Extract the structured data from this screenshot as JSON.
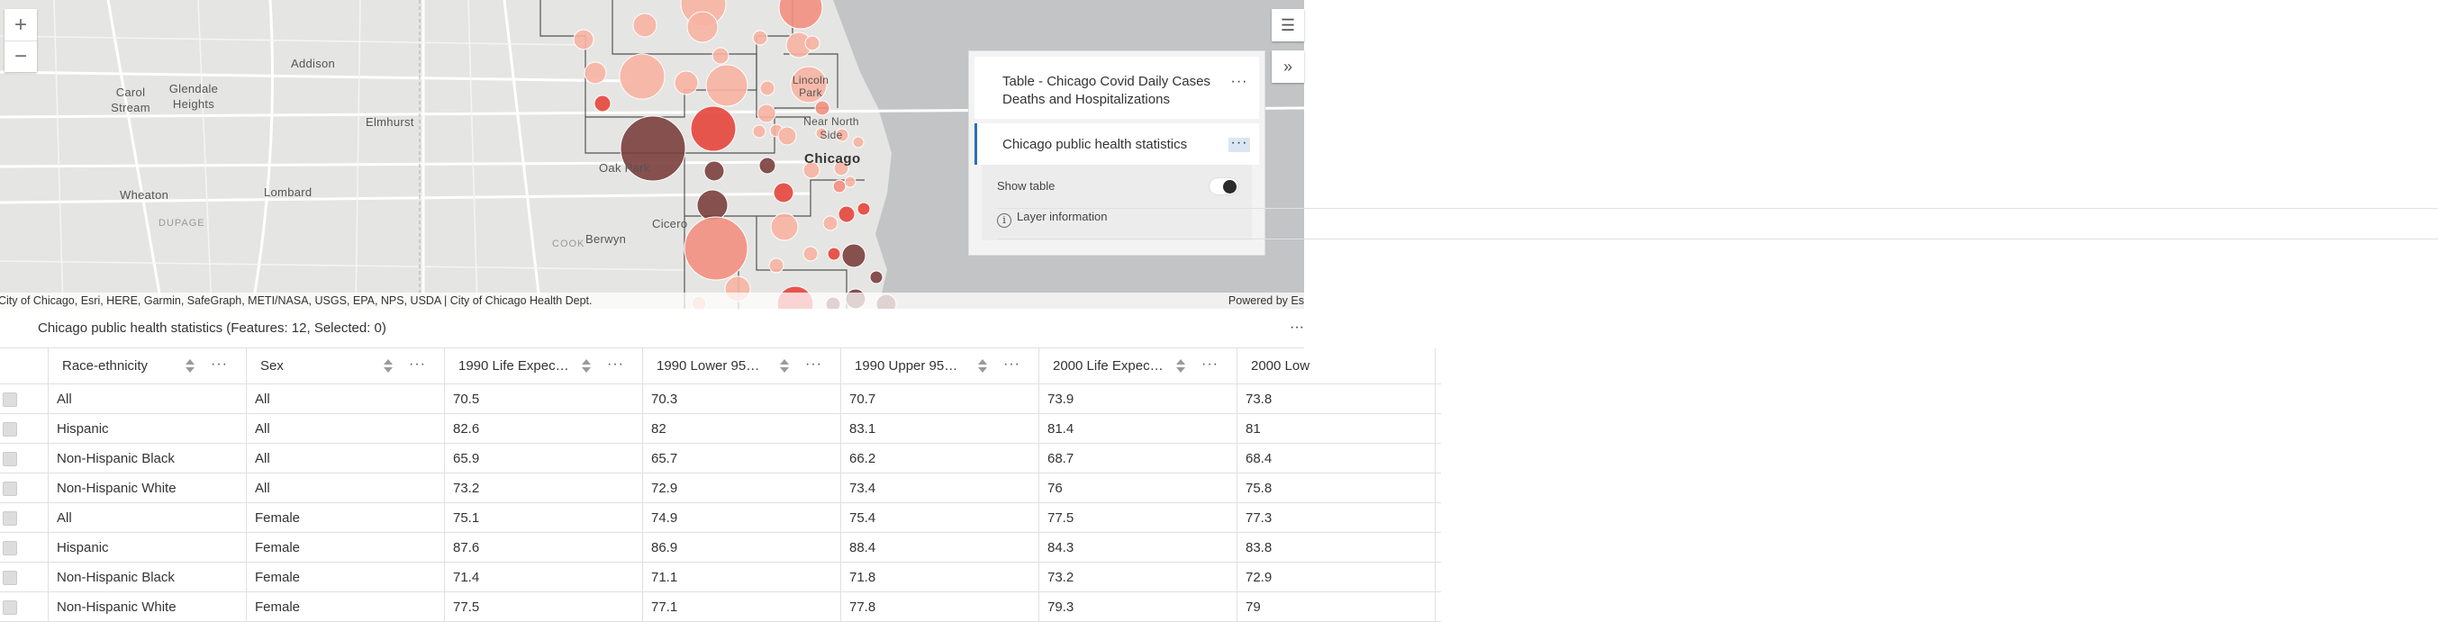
{
  "map": {
    "labels": {
      "addison": "Addison",
      "carol_stream": "Carol Stream",
      "glendale_heights": "Glendale Heights",
      "elmhurst": "Elmhurst",
      "wheaton": "Wheaton",
      "lombard": "Lombard",
      "dupage": "DUPAGE",
      "oak_park": "Oak Park",
      "cicero": "Cicero",
      "cook": "COOK",
      "berwyn": "Berwyn",
      "chicago": "Chicago",
      "lincoln_park": "Lincoln Park",
      "near_north_side": "Near North Side"
    },
    "attribution": "City of Chicago, Esri, HERE, Garmin, SafeGraph, METI/NASA, USGS, EPA, NPS, USDA | City of Chicago Health Dept.",
    "powered_by": "Powered by Es",
    "colors": {
      "light": "#f7b3a2",
      "mid": "#f28f7f",
      "red": "#e5453b",
      "dark": "#7a3f3c",
      "water": "#c2c4c6",
      "land": "#e5e5e3"
    }
  },
  "controls": {
    "zoom_in": "+",
    "zoom_out": "−",
    "list_icon": "☰",
    "collapse_icon": "»"
  },
  "layer_list": {
    "items": [
      {
        "title": "Table - Chicago Covid Daily Cases Deaths and Hospitalizations",
        "menu": "···"
      },
      {
        "title": "Chicago public health statistics",
        "menu": "···"
      }
    ],
    "show_table_label": "Show table",
    "layer_info_label": "Layer information",
    "info_icon": "i"
  },
  "table": {
    "title": "Chicago public health statistics (Features: 12, Selected: 0)",
    "menu": "···",
    "columns": [
      "Race-ethnicity",
      "Sex",
      "1990 Life Expec…",
      "1990 Lower 95…",
      "1990 Upper 95…",
      "2000 Life Expec…",
      "2000 Low"
    ],
    "rows": [
      [
        "All",
        "All",
        "70.5",
        "70.3",
        "70.7",
        "73.9",
        "73.8"
      ],
      [
        "Hispanic",
        "All",
        "82.6",
        "82",
        "83.1",
        "81.4",
        "81"
      ],
      [
        "Non-Hispanic Black",
        "All",
        "65.9",
        "65.7",
        "66.2",
        "68.7",
        "68.4"
      ],
      [
        "Non-Hispanic White",
        "All",
        "73.2",
        "72.9",
        "73.4",
        "76",
        "75.8"
      ],
      [
        "All",
        "Female",
        "75.1",
        "74.9",
        "75.4",
        "77.5",
        "77.3"
      ],
      [
        "Hispanic",
        "Female",
        "87.6",
        "86.9",
        "88.4",
        "84.3",
        "83.8"
      ],
      [
        "Non-Hispanic Black",
        "Female",
        "71.4",
        "71.1",
        "71.8",
        "73.2",
        "72.9"
      ],
      [
        "Non-Hispanic White",
        "Female",
        "77.5",
        "77.1",
        "77.8",
        "79.3",
        "79"
      ]
    ]
  }
}
